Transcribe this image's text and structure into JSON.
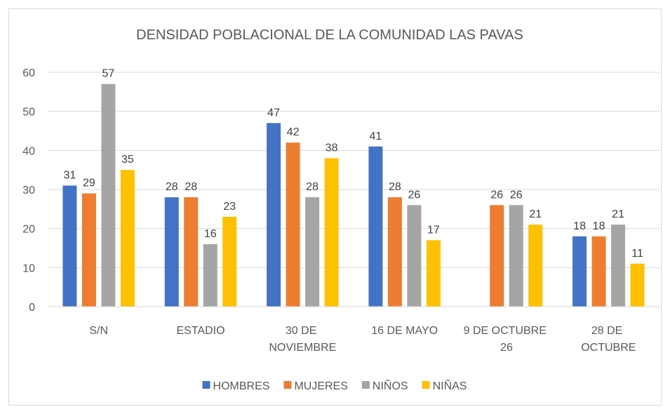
{
  "chart_data": {
    "type": "bar",
    "title": "DENSIDAD POBLACIONAL  DE LA COMUNIDAD LAS PAVAS",
    "categories": [
      "S/N",
      "ESTADIO",
      "30 DE NOVIEMBRE",
      "16 DE MAYO",
      "9 DE OCTUBRE 26",
      "28 DE OCTUBRE"
    ],
    "series": [
      {
        "name": "HOMBRES",
        "color": "#4472c4",
        "values": [
          31,
          28,
          47,
          41,
          null,
          18
        ]
      },
      {
        "name": "MUJERES",
        "color": "#ed7d31",
        "values": [
          29,
          28,
          42,
          28,
          26,
          18
        ]
      },
      {
        "name": "NIÑOS",
        "color": "#a5a5a5",
        "values": [
          57,
          16,
          28,
          26,
          26,
          21
        ]
      },
      {
        "name": "NIÑAS",
        "color": "#ffc000",
        "values": [
          35,
          23,
          38,
          17,
          21,
          11
        ]
      }
    ],
    "ylim": [
      0,
      60
    ],
    "yticks": [
      0,
      10,
      20,
      30,
      40,
      50,
      60
    ],
    "grid": true,
    "legend": "bottom"
  }
}
